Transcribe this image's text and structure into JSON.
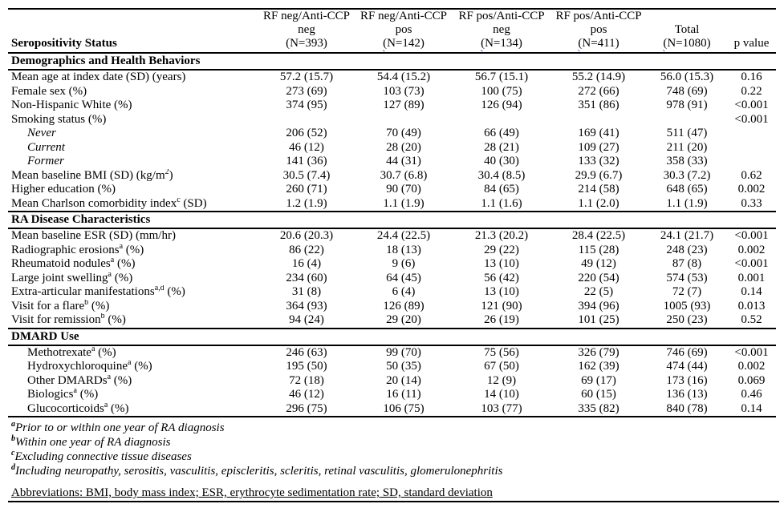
{
  "table": {
    "header": {
      "row_label_title": "Seropositivity Status",
      "p_label": "p value",
      "columns": [
        {
          "line1": "RF neg/Anti-CCP",
          "line2": "neg",
          "n": "(N=393)",
          "squiggle": false
        },
        {
          "line1": "RF neg/Anti-CCP",
          "line2": "pos",
          "n": "(N=142)",
          "squiggle": true
        },
        {
          "line1": "RF pos/Anti-CCP",
          "line2": "neg",
          "n": "(N=134)",
          "squiggle": true
        },
        {
          "line1": "RF pos/Anti-CCP",
          "line2": "pos",
          "n": "(N=411)",
          "squiggle": true
        },
        {
          "line1": "",
          "line2": "Total",
          "n": "(N=1080)",
          "squiggle": true
        }
      ]
    },
    "sections": [
      {
        "title": "Demographics and Health Behaviors",
        "rows": [
          {
            "label": "Mean age at index date (SD) (years)",
            "indent": false,
            "italic": false,
            "cells": [
              "57.2 (15.7)",
              "54.4 (15.2)",
              "56.7 (15.1)",
              "55.2 (14.9)",
              "56.0 (15.3)"
            ],
            "p": "0.16"
          },
          {
            "label": "Female sex (%)",
            "indent": false,
            "italic": false,
            "cells": [
              "273 (69)",
              "103 (73)",
              "100 (75)",
              "272 (66)",
              "748 (69)"
            ],
            "p": "0.22"
          },
          {
            "label": "Non-Hispanic White (%)",
            "indent": false,
            "italic": false,
            "cells": [
              "374 (95)",
              "127 (89)",
              "126 (94)",
              "351 (86)",
              "978 (91)"
            ],
            "p": "<0.001"
          },
          {
            "label": "Smoking status (%)",
            "indent": false,
            "italic": false,
            "cells": [
              "",
              "",
              "",
              "",
              ""
            ],
            "p": "<0.001"
          },
          {
            "label": "Never",
            "indent": true,
            "italic": true,
            "cells": [
              "206 (52)",
              "70 (49)",
              "66 (49)",
              "169 (41)",
              "511 (47)"
            ],
            "p": ""
          },
          {
            "label": "Current",
            "indent": true,
            "italic": true,
            "cells": [
              "46 (12)",
              "28 (20)",
              "28 (21)",
              "109 (27)",
              "211 (20)"
            ],
            "p": ""
          },
          {
            "label": "Former",
            "indent": true,
            "italic": true,
            "cells": [
              "141 (36)",
              "44 (31)",
              "40 (30)",
              "133 (32)",
              "358 (33)"
            ],
            "p": ""
          },
          {
            "label": "Mean baseline BMI (SD) (kg/m^2^)",
            "indent": false,
            "italic": false,
            "cells": [
              "30.5 (7.4)",
              "30.7 (6.8)",
              "30.4 (8.5)",
              "29.9 (6.7)",
              "30.3 (7.2)"
            ],
            "p": "0.62"
          },
          {
            "label": "Higher education (%)",
            "indent": false,
            "italic": false,
            "cells": [
              "260 (71)",
              "90 (70)",
              "84 (65)",
              "214 (58)",
              "648 (65)"
            ],
            "p": "0.002"
          },
          {
            "label": "Mean Charlson comorbidity index^c^ (SD)",
            "indent": false,
            "italic": false,
            "cells": [
              "1.2 (1.9)",
              "1.1 (1.9)",
              "1.1 (1.6)",
              "1.1 (2.0)",
              "1.1 (1.9)"
            ],
            "p": "0.33"
          }
        ]
      },
      {
        "title": "RA Disease Characteristics",
        "rows": [
          {
            "label": "Mean baseline ESR (SD) (mm/hr)",
            "indent": false,
            "italic": false,
            "cells": [
              "20.6 (20.3)",
              "24.4 (22.5)",
              "21.3 (20.2)",
              "28.4 (22.5)",
              "24.1 (21.7)"
            ],
            "p": "<0.001"
          },
          {
            "label": "Radiographic erosions^a^ (%)",
            "indent": false,
            "italic": false,
            "cells": [
              "86 (22)",
              "18 (13)",
              "29 (22)",
              "115 (28)",
              "248 (23)"
            ],
            "p": "0.002"
          },
          {
            "label": "Rheumatoid nodules^a^ (%)",
            "indent": false,
            "italic": false,
            "cells": [
              "16 (4)",
              "9 (6)",
              "13 (10)",
              "49 (12)",
              "87 (8)"
            ],
            "p": "<0.001"
          },
          {
            "label": "Large joint swelling^a^ (%)",
            "indent": false,
            "italic": false,
            "cells": [
              "234 (60)",
              "64 (45)",
              "56 (42)",
              "220 (54)",
              "574 (53)"
            ],
            "p": "0.001"
          },
          {
            "label": "Extra-articular manifestations^a,d^ (%)",
            "indent": false,
            "italic": false,
            "cells": [
              "31 (8)",
              "6 (4)",
              "13 (10)",
              "22 (5)",
              "72 (7)"
            ],
            "p": "0.14"
          },
          {
            "label": "Visit for a flare^b^ (%)",
            "indent": false,
            "italic": false,
            "cells": [
              "364 (93)",
              "126 (89)",
              "121 (90)",
              "394 (96)",
              "1005 (93)"
            ],
            "p": "0.013"
          },
          {
            "label": "Visit for remission^b^ (%)",
            "indent": false,
            "italic": false,
            "cells": [
              "94 (24)",
              "29 (20)",
              "26 (19)",
              "101 (25)",
              "250 (23)"
            ],
            "p": "0.52"
          }
        ]
      },
      {
        "title": "DMARD Use",
        "rows": [
          {
            "label": "Methotrexate^a^ (%)",
            "indent": true,
            "italic": false,
            "cells": [
              "246 (63)",
              "99 (70)",
              "75 (56)",
              "326 (79)",
              "746 (69)"
            ],
            "p": "<0.001"
          },
          {
            "label": "Hydroxychloroquine^a^ (%)",
            "indent": true,
            "italic": false,
            "cells": [
              "195 (50)",
              "50 (35)",
              "67 (50)",
              "162 (39)",
              "474 (44)"
            ],
            "p": "0.002"
          },
          {
            "label": "Other DMARDs^a^ (%)",
            "indent": true,
            "italic": false,
            "cells": [
              "72 (18)",
              "20 (14)",
              "12 (9)",
              "69 (17)",
              "173 (16)"
            ],
            "p": "0.069"
          },
          {
            "label": "Biologics^a^ (%)",
            "indent": true,
            "italic": false,
            "cells": [
              "46 (12)",
              "16 (11)",
              "14 (10)",
              "60 (15)",
              "136 (13)"
            ],
            "p": "0.46"
          },
          {
            "label": "Glucocorticoids^a^ (%)",
            "indent": true,
            "italic": false,
            "cells": [
              "296 (75)",
              "106 (75)",
              "103 (77)",
              "335 (82)",
              "840 (78)"
            ],
            "p": "0.14"
          }
        ]
      }
    ],
    "footnotes": [
      {
        "sup": "a",
        "text": "Prior to or within one year of RA diagnosis"
      },
      {
        "sup": "b",
        "text": "Within one year of RA diagnosis"
      },
      {
        "sup": "c",
        "text": "Excluding connective tissue diseases"
      },
      {
        "sup": "d",
        "text": "Including neuropathy, serositis, vasculitis, episcleritis, scleritis, retinal vasculitis, glomerulonephritis"
      }
    ],
    "abbreviations": "Abbreviations: BMI, body mass index; ESR, erythrocyte sedimentation rate; SD, standard deviation",
    "squiggle_color": "#3a66cc"
  }
}
